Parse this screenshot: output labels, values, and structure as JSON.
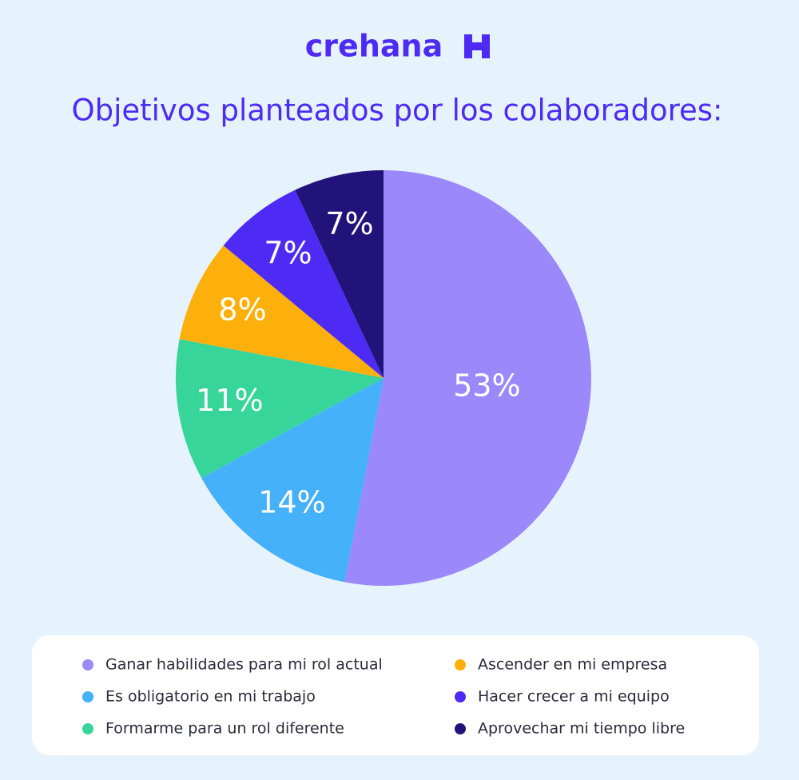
{
  "brand": "crehana",
  "chart_data": {
    "type": "pie",
    "title": "Objetivos planteados por los colaboradores:",
    "categories": [
      "Ganar habilidades para mi rol actual",
      "Es obligatorio en mi trabajo",
      "Formarme para un rol diferente",
      "Ascender en mi empresa",
      "Hacer crecer a mi equipo",
      "Aprovechar mi tiempo libre"
    ],
    "values": [
      53,
      14,
      11,
      8,
      7,
      7
    ],
    "value_labels": [
      "53%",
      "14%",
      "11%",
      "8%",
      "7%",
      "7%"
    ],
    "colors": [
      "#9b88fa",
      "#45b1fb",
      "#37d59a",
      "#fdb00b",
      "#4d2bf5",
      "#21137a"
    ]
  }
}
